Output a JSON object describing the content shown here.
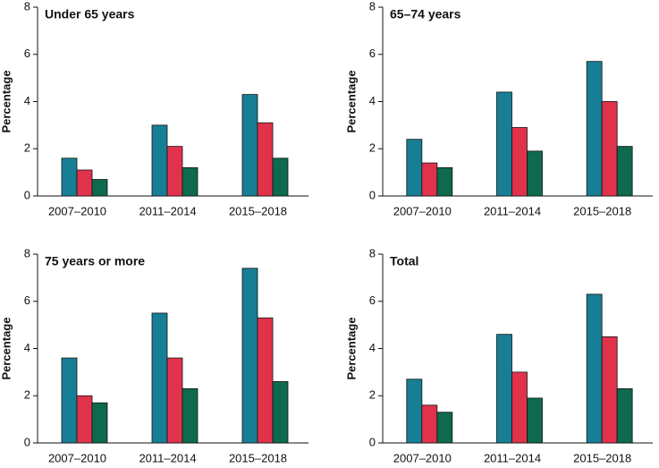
{
  "chart_data": [
    {
      "type": "bar",
      "title": "Under 65 years",
      "ylabel": "Percentage",
      "categories": [
        "2007–2010",
        "2011–2014",
        "2015–2018"
      ],
      "series": [
        {
          "color": "#177f95",
          "values": [
            1.6,
            3.0,
            4.3
          ]
        },
        {
          "color": "#e0334b",
          "values": [
            1.1,
            2.1,
            3.1
          ]
        },
        {
          "color": "#0d6a4e",
          "values": [
            0.7,
            1.2,
            1.6
          ]
        }
      ],
      "ylim": [
        0,
        8
      ],
      "yticks": [
        0,
        2,
        4,
        6,
        8
      ]
    },
    {
      "type": "bar",
      "title": "65–74 years",
      "ylabel": "Percentage",
      "categories": [
        "2007–2010",
        "2011–2014",
        "2015–2018"
      ],
      "series": [
        {
          "color": "#177f95",
          "values": [
            2.4,
            4.4,
            5.7
          ]
        },
        {
          "color": "#e0334b",
          "values": [
            1.4,
            2.9,
            4.0
          ]
        },
        {
          "color": "#0d6a4e",
          "values": [
            1.2,
            1.9,
            2.1
          ]
        }
      ],
      "ylim": [
        0,
        8
      ],
      "yticks": [
        0,
        2,
        4,
        6,
        8
      ]
    },
    {
      "type": "bar",
      "title": "75 years or more",
      "ylabel": "Percentage",
      "categories": [
        "2007–2010",
        "2011–2014",
        "2015–2018"
      ],
      "series": [
        {
          "color": "#177f95",
          "values": [
            3.6,
            5.5,
            7.4
          ]
        },
        {
          "color": "#e0334b",
          "values": [
            2.0,
            3.6,
            5.3
          ]
        },
        {
          "color": "#0d6a4e",
          "values": [
            1.7,
            2.3,
            2.6
          ]
        }
      ],
      "ylim": [
        0,
        8
      ],
      "yticks": [
        0,
        2,
        4,
        6,
        8
      ]
    },
    {
      "type": "bar",
      "title": "Total",
      "ylabel": "Percentage",
      "categories": [
        "2007–2010",
        "2011–2014",
        "2015–2018"
      ],
      "series": [
        {
          "color": "#177f95",
          "values": [
            2.7,
            4.6,
            6.3
          ]
        },
        {
          "color": "#e0334b",
          "values": [
            1.6,
            3.0,
            4.5
          ]
        },
        {
          "color": "#0d6a4e",
          "values": [
            1.3,
            1.9,
            2.3
          ]
        }
      ],
      "ylim": [
        0,
        8
      ],
      "yticks": [
        0,
        2,
        4,
        6,
        8
      ]
    }
  ]
}
